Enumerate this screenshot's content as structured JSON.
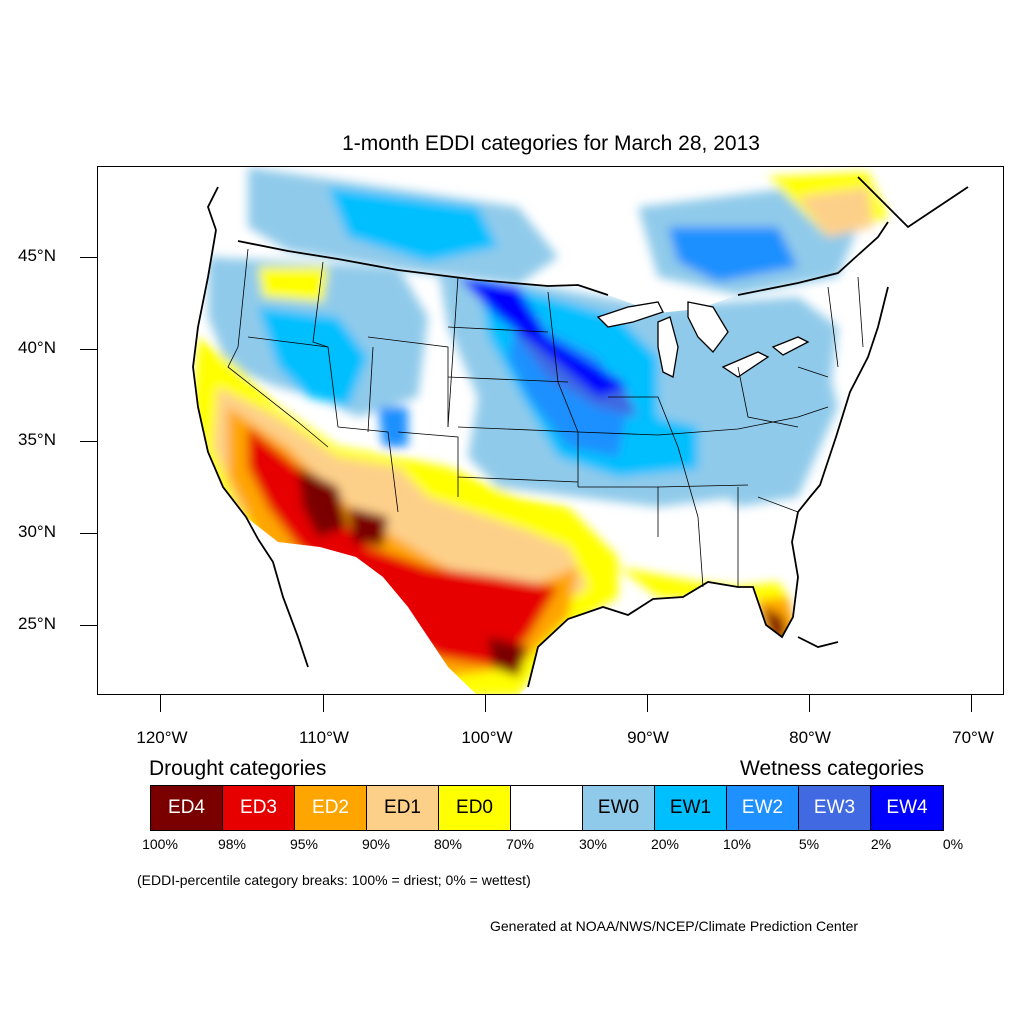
{
  "title": "1-month EDDI categories for March 28, 2013",
  "map": {
    "projection": "lambert-conformal-conus",
    "region": "Contiguous United States",
    "lat_labels": [
      "45°N",
      "40°N",
      "35°N",
      "30°N",
      "25°N"
    ],
    "lon_labels": [
      "120°W",
      "110°W",
      "100°W",
      "90°W",
      "80°W",
      "70°W"
    ],
    "colors": {
      "ED4": "#7a0000",
      "ED3": "#e60000",
      "ED2": "#ffa500",
      "ED1": "#fdd08a",
      "ED0": "#ffff00",
      "neutral": "#ffffff",
      "EW0": "#90caea",
      "EW1": "#00bfff",
      "EW2": "#1e90ff",
      "EW3": "#4169e1",
      "EW4": "#0000ff"
    }
  },
  "legend": {
    "drought_title": "Drought categories",
    "wetness_title": "Wetness categories",
    "categories": [
      {
        "label": "ED4",
        "color": "#7a0000",
        "text_color": "#ffffff"
      },
      {
        "label": "ED3",
        "color": "#e60000",
        "text_color": "#ffffff"
      },
      {
        "label": "ED2",
        "color": "#ffa500",
        "text_color": "#ffffff"
      },
      {
        "label": "ED1",
        "color": "#fdd08a",
        "text_color": "#000000"
      },
      {
        "label": "ED0",
        "color": "#ffff00",
        "text_color": "#000000"
      },
      {
        "label": "",
        "color": "#ffffff",
        "text_color": "#000000"
      },
      {
        "label": "EW0",
        "color": "#90caea",
        "text_color": "#000000"
      },
      {
        "label": "EW1",
        "color": "#00bfff",
        "text_color": "#000000"
      },
      {
        "label": "EW2",
        "color": "#1e90ff",
        "text_color": "#ffffff"
      },
      {
        "label": "EW3",
        "color": "#4169e1",
        "text_color": "#ffffff"
      },
      {
        "label": "EW4",
        "color": "#0000ff",
        "text_color": "#ffffff"
      }
    ],
    "breaks": [
      "100%",
      "98%",
      "95%",
      "90%",
      "80%",
      "70%",
      "30%",
      "20%",
      "10%",
      "5%",
      "2%",
      "0%"
    ],
    "note": "(EDDI-percentile category breaks: 100% = driest; 0% = wettest)"
  },
  "credit": "Generated at NOAA/NWS/NCEP/Climate Prediction Center"
}
